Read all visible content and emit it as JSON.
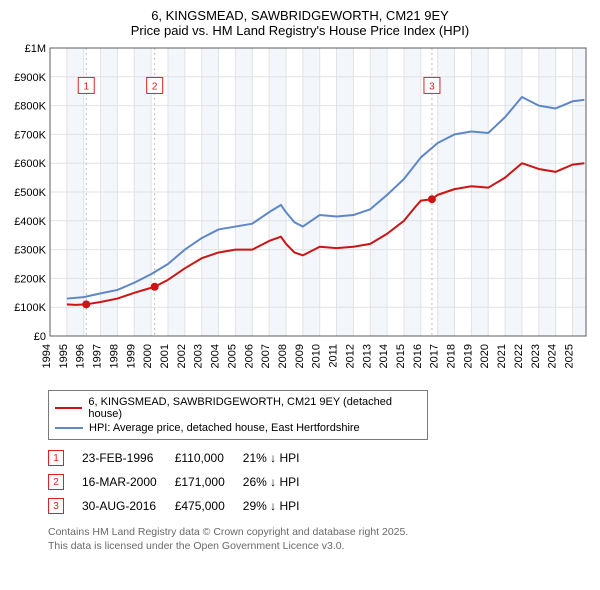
{
  "title_line1": "6, KINGSMEAD, SAWBRIDGEWORTH, CM21 9EY",
  "title_line2": "Price paid vs. HM Land Registry's House Price Index (HPI)",
  "chart": {
    "type": "line",
    "background_color": "#ffffff",
    "grid_color": "#e2e2e2",
    "band_color": "#f3f6fb",
    "axis_color": "#5c5c5c",
    "annotation_line_color": "#bdbdbd",
    "x_years": [
      1994,
      1995,
      1996,
      1997,
      1998,
      1999,
      2000,
      2001,
      2002,
      2003,
      2004,
      2005,
      2006,
      2007,
      2008,
      2009,
      2010,
      2011,
      2012,
      2013,
      2014,
      2015,
      2016,
      2017,
      2018,
      2019,
      2020,
      2021,
      2022,
      2023,
      2024,
      2025
    ],
    "xlim": [
      1994,
      2025.8
    ],
    "ylim": [
      0,
      1000000
    ],
    "ytick_step": 100000,
    "ytick_labels": [
      "£0",
      "£100K",
      "£200K",
      "£300K",
      "£400K",
      "£500K",
      "£600K",
      "£700K",
      "£800K",
      "£900K",
      "£1M"
    ],
    "label_fontsize": 11,
    "line_width": 2,
    "series": [
      {
        "name": "price_paid",
        "label": "6, KINGSMEAD, SAWBRIDGEWORTH, CM21 9EY (detached house)",
        "color": "#cc1414",
        "points": [
          [
            1995.0,
            110000
          ],
          [
            1995.5,
            108000
          ],
          [
            1996.15,
            110000
          ],
          [
            1997,
            118000
          ],
          [
            1998,
            130000
          ],
          [
            1999,
            150000
          ],
          [
            2000.21,
            171000
          ],
          [
            2001,
            195000
          ],
          [
            2002,
            235000
          ],
          [
            2003,
            270000
          ],
          [
            2004,
            290000
          ],
          [
            2005,
            300000
          ],
          [
            2006,
            300000
          ],
          [
            2007,
            330000
          ],
          [
            2007.7,
            345000
          ],
          [
            2008,
            320000
          ],
          [
            2008.5,
            290000
          ],
          [
            2009,
            280000
          ],
          [
            2010,
            310000
          ],
          [
            2011,
            305000
          ],
          [
            2012,
            310000
          ],
          [
            2013,
            320000
          ],
          [
            2014,
            355000
          ],
          [
            2015,
            400000
          ],
          [
            2015.7,
            450000
          ],
          [
            2016,
            470000
          ],
          [
            2016.66,
            475000
          ],
          [
            2017,
            490000
          ],
          [
            2018,
            510000
          ],
          [
            2019,
            520000
          ],
          [
            2020,
            515000
          ],
          [
            2021,
            550000
          ],
          [
            2022,
            600000
          ],
          [
            2023,
            580000
          ],
          [
            2024,
            570000
          ],
          [
            2025,
            595000
          ],
          [
            2025.7,
            600000
          ]
        ]
      },
      {
        "name": "hpi",
        "label": "HPI: Average price, detached house, East Hertfordshire",
        "color": "#5f87c7",
        "points": [
          [
            1995.0,
            130000
          ],
          [
            1996,
            135000
          ],
          [
            1997,
            148000
          ],
          [
            1998,
            160000
          ],
          [
            1999,
            185000
          ],
          [
            2000,
            215000
          ],
          [
            2001,
            250000
          ],
          [
            2002,
            300000
          ],
          [
            2003,
            340000
          ],
          [
            2004,
            370000
          ],
          [
            2005,
            380000
          ],
          [
            2006,
            390000
          ],
          [
            2007,
            430000
          ],
          [
            2007.7,
            455000
          ],
          [
            2008,
            430000
          ],
          [
            2008.5,
            395000
          ],
          [
            2009,
            380000
          ],
          [
            2010,
            420000
          ],
          [
            2011,
            415000
          ],
          [
            2012,
            420000
          ],
          [
            2013,
            440000
          ],
          [
            2014,
            490000
          ],
          [
            2015,
            545000
          ],
          [
            2016,
            620000
          ],
          [
            2017,
            670000
          ],
          [
            2018,
            700000
          ],
          [
            2019,
            710000
          ],
          [
            2020,
            705000
          ],
          [
            2021,
            760000
          ],
          [
            2022,
            830000
          ],
          [
            2023,
            800000
          ],
          [
            2024,
            790000
          ],
          [
            2025,
            815000
          ],
          [
            2025.7,
            820000
          ]
        ]
      }
    ],
    "markers": [
      {
        "n": 1,
        "x": 1996.15,
        "y": 110000,
        "label_y": 870000
      },
      {
        "n": 2,
        "x": 2000.21,
        "y": 171000,
        "label_y": 870000
      },
      {
        "n": 3,
        "x": 2016.66,
        "y": 475000,
        "label_y": 870000
      }
    ],
    "marker_box": {
      "border_color": "#d22",
      "text_color": "#d22",
      "size": 16,
      "fontsize": 10
    },
    "marker_dot": {
      "radius": 4,
      "fill": "#cc1414"
    }
  },
  "legend": {
    "series1_label": "6, KINGSMEAD, SAWBRIDGEWORTH, CM21 9EY (detached house)",
    "series1_color": "#cc1414",
    "series2_label": "HPI: Average price, detached house, East Hertfordshire",
    "series2_color": "#5f87c7"
  },
  "transactions": [
    {
      "n": "1",
      "date": "23-FEB-1996",
      "price": "£110,000",
      "diff": "21% ↓ HPI"
    },
    {
      "n": "2",
      "date": "16-MAR-2000",
      "price": "£171,000",
      "diff": "26% ↓ HPI"
    },
    {
      "n": "3",
      "date": "30-AUG-2016",
      "price": "£475,000",
      "diff": "29% ↓ HPI"
    }
  ],
  "footer_line1": "Contains HM Land Registry data © Crown copyright and database right 2025.",
  "footer_line2": "This data is licensed under the Open Government Licence v3.0."
}
